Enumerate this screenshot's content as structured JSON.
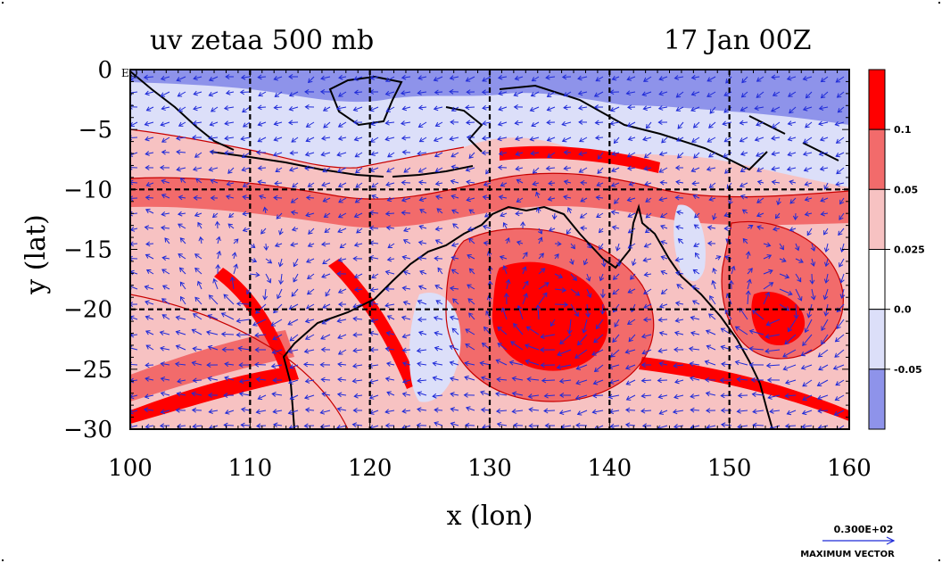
{
  "figure": {
    "title_left": "uv zetaa 500 mb",
    "title_right": "17 Jan 00Z",
    "xlabel": "x (lon)",
    "ylabel": "y (lat)",
    "eq_label": "EQ"
  },
  "x_axis": {
    "ticks": [
      100,
      110,
      120,
      130,
      140,
      150,
      160
    ],
    "tick_labels": [
      "100",
      "110",
      "120",
      "130",
      "140",
      "150",
      "160"
    ],
    "range": [
      100,
      160
    ]
  },
  "y_axis": {
    "ticks": [
      0,
      -5,
      -10,
      -15,
      -20,
      -25,
      -30
    ],
    "tick_labels": [
      "0",
      "−5",
      "−10",
      "−15",
      "−20",
      "−25",
      "−30"
    ],
    "range": [
      -30,
      0
    ]
  },
  "grid_lines": {
    "lon": [
      110,
      120,
      130,
      140,
      150
    ],
    "lat": [
      -10,
      -20
    ]
  },
  "colorbar": {
    "labels": [
      "0.1",
      "0.05",
      "0.025",
      "0.0",
      "-0.05"
    ],
    "colors": [
      "#ff0000",
      "#f26b6b",
      "#f7c2c2",
      "#ffffff",
      "#dcdff9",
      "#8e93ea"
    ]
  },
  "vector_key": {
    "value": "0.300E+02",
    "label": "MAXIMUM VECTOR",
    "color": "#1f2bd8"
  },
  "colors": {
    "vector": "#1f2bd8",
    "coast": "#000000",
    "contour": "#c80000"
  }
}
